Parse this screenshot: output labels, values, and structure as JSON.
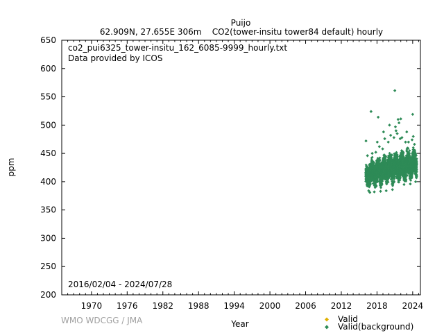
{
  "chart_data": {
    "type": "scatter",
    "title": "Puijo",
    "subtitle": "62.909N, 27.655E 306m    CO2(tower-insitu tower84 default) hourly",
    "file_label": "co2_pui6325_tower-insitu_162_6085-9999_hourly.txt",
    "provider_label": "Data provided by ICOS",
    "date_range_label": "2016/02/04 - 2024/07/28",
    "credit": "WMO WDCGG / JMA",
    "xlabel": "Year",
    "ylabel": "ppm",
    "xlim": [
      1965.0,
      2025.3
    ],
    "ylim": [
      200,
      650
    ],
    "x_ticks": [
      1970,
      1976,
      1982,
      1988,
      1994,
      2000,
      2006,
      2012,
      2018,
      2024
    ],
    "y_ticks": [
      200,
      250,
      300,
      350,
      400,
      450,
      500,
      550,
      600,
      650
    ],
    "grid": false,
    "legend_position": "bottom-right",
    "series": [
      {
        "name": "Valid",
        "color": "#e0b000",
        "marker": "diamond",
        "points": []
      },
      {
        "name": "Valid(background)",
        "color": "#2e8b57",
        "marker": "diamond",
        "band": [
          [
            2016.1,
            395,
            430
          ],
          [
            2016.3,
            392,
            428
          ],
          [
            2016.5,
            388,
            425
          ],
          [
            2016.7,
            390,
            432
          ],
          [
            2016.9,
            398,
            440
          ],
          [
            2017.1,
            400,
            445
          ],
          [
            2017.3,
            395,
            440
          ],
          [
            2017.5,
            385,
            430
          ],
          [
            2017.7,
            388,
            432
          ],
          [
            2017.9,
            398,
            442
          ],
          [
            2018.1,
            402,
            448
          ],
          [
            2018.3,
            398,
            444
          ],
          [
            2018.5,
            388,
            434
          ],
          [
            2018.7,
            390,
            436
          ],
          [
            2018.9,
            400,
            446
          ],
          [
            2019.1,
            404,
            452
          ],
          [
            2019.3,
            400,
            447
          ],
          [
            2019.5,
            390,
            437
          ],
          [
            2019.7,
            392,
            440
          ],
          [
            2019.9,
            402,
            450
          ],
          [
            2020.1,
            406,
            454
          ],
          [
            2020.3,
            402,
            450
          ],
          [
            2020.5,
            392,
            440
          ],
          [
            2020.7,
            394,
            443
          ],
          [
            2020.9,
            404,
            452
          ],
          [
            2021.1,
            408,
            457
          ],
          [
            2021.3,
            404,
            452
          ],
          [
            2021.5,
            394,
            443
          ],
          [
            2021.7,
            396,
            446
          ],
          [
            2021.9,
            406,
            455
          ],
          [
            2022.1,
            410,
            460
          ],
          [
            2022.3,
            406,
            455
          ],
          [
            2022.5,
            396,
            446
          ],
          [
            2022.7,
            398,
            448
          ],
          [
            2022.9,
            408,
            458
          ],
          [
            2023.1,
            412,
            462
          ],
          [
            2023.3,
            408,
            458
          ],
          [
            2023.5,
            398,
            448
          ],
          [
            2023.7,
            400,
            450
          ],
          [
            2023.9,
            410,
            460
          ],
          [
            2024.1,
            414,
            464
          ],
          [
            2024.3,
            410,
            458
          ],
          [
            2024.5,
            402,
            448
          ]
        ],
        "points": [
          [
            2016.15,
            472
          ],
          [
            2016.4,
            446
          ],
          [
            2016.6,
            384
          ],
          [
            2016.8,
            381
          ],
          [
            2017.0,
            524
          ],
          [
            2017.2,
            450
          ],
          [
            2017.55,
            382
          ],
          [
            2017.8,
            452
          ],
          [
            2018.05,
            470
          ],
          [
            2018.2,
            514
          ],
          [
            2018.4,
            462
          ],
          [
            2018.6,
            383
          ],
          [
            2018.95,
            458
          ],
          [
            2019.1,
            488
          ],
          [
            2019.3,
            476
          ],
          [
            2019.55,
            384
          ],
          [
            2019.9,
            470
          ],
          [
            2020.1,
            500
          ],
          [
            2020.3,
            482
          ],
          [
            2020.6,
            386
          ],
          [
            2020.85,
            478
          ],
          [
            2021.0,
            561
          ],
          [
            2021.1,
            497
          ],
          [
            2021.2,
            490
          ],
          [
            2021.4,
            485
          ],
          [
            2021.55,
            510
          ],
          [
            2021.7,
            504
          ],
          [
            2021.9,
            476
          ],
          [
            2022.0,
            511
          ],
          [
            2022.2,
            478
          ],
          [
            2022.55,
            395
          ],
          [
            2022.8,
            470
          ],
          [
            2023.0,
            488
          ],
          [
            2023.3,
            470
          ],
          [
            2023.6,
            396
          ],
          [
            2023.9,
            474
          ],
          [
            2024.0,
            519
          ],
          [
            2024.1,
            480
          ],
          [
            2024.3,
            466
          ],
          [
            2024.5,
            400
          ]
        ]
      }
    ]
  }
}
